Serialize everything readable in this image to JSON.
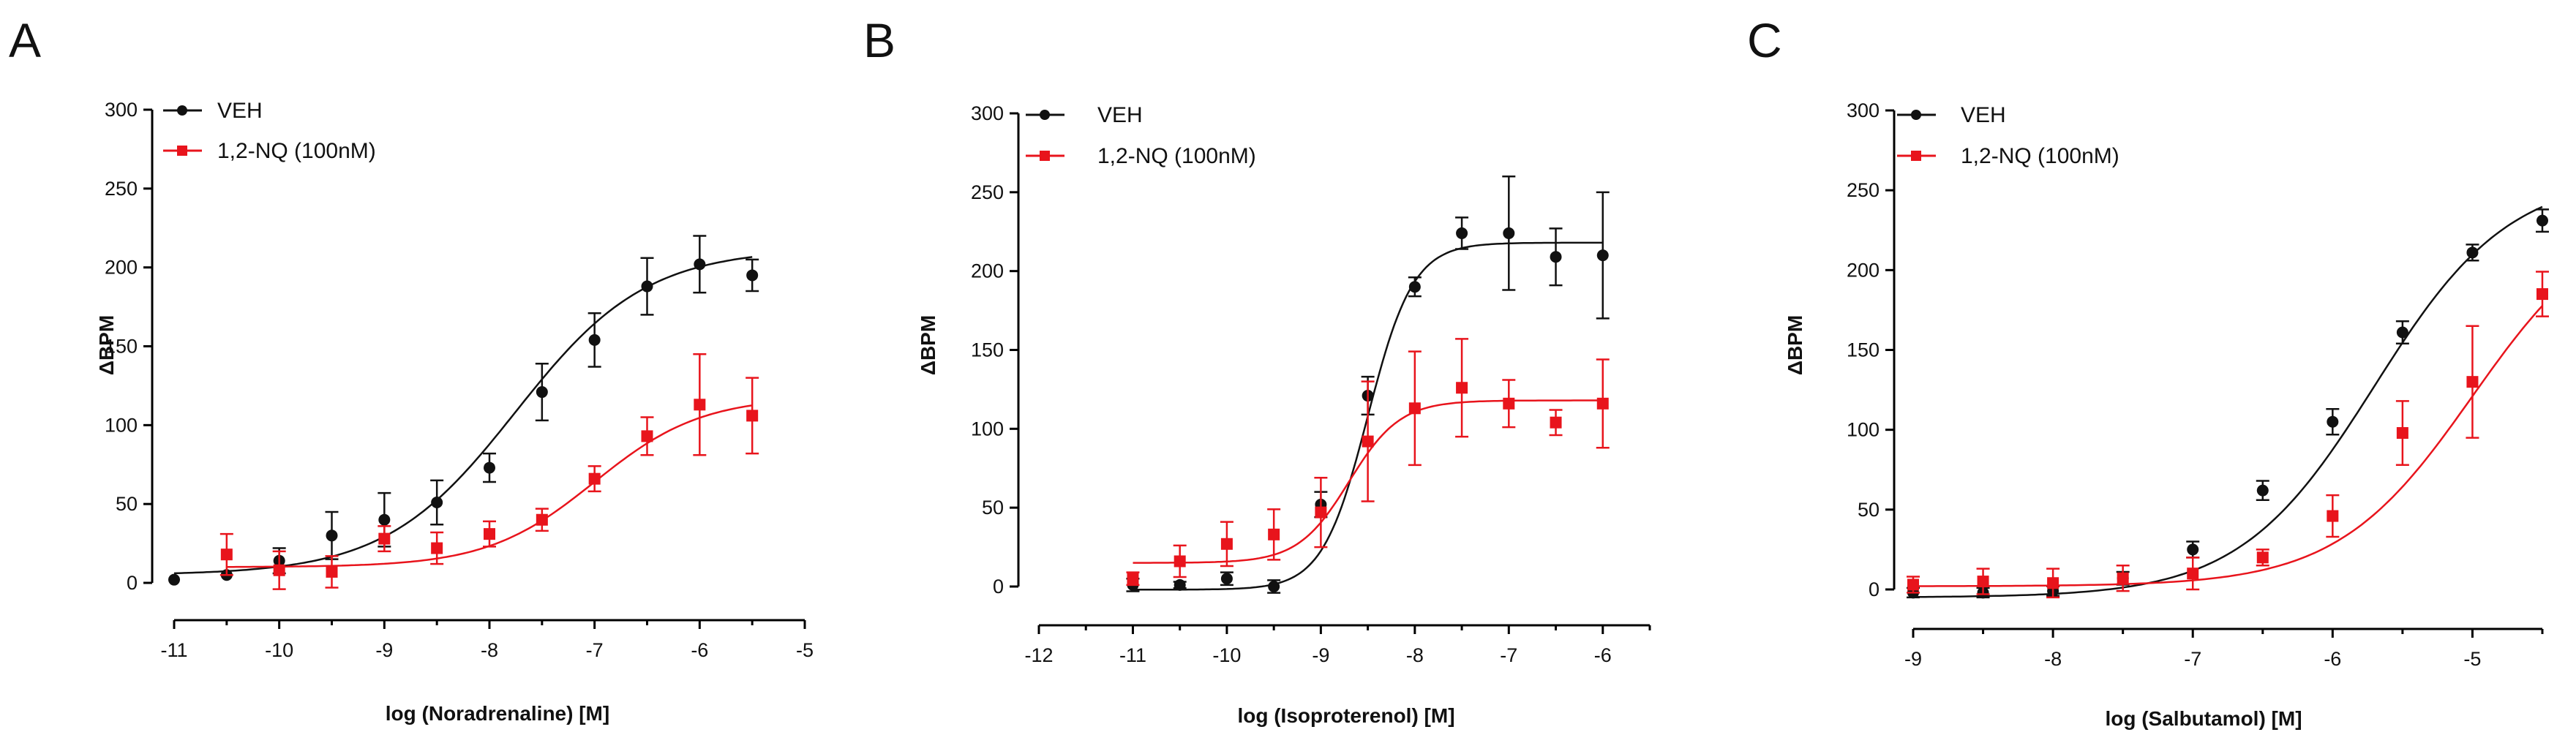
{
  "chart_data": [
    {
      "type": "scatter",
      "panel_label": "A",
      "xlabel": "log (Noradrenaline) [M]",
      "ylabel": "ΔBPM",
      "xlim": [
        -11,
        -5
      ],
      "ylim": [
        0,
        300
      ],
      "xticks": [
        -11,
        -10,
        -9,
        -8,
        -7,
        -6,
        -5
      ],
      "xtick_labels": [
        "-11",
        "-10",
        "-9",
        "-8",
        "-7",
        "-6",
        "-5"
      ],
      "yticks": [
        0,
        50,
        100,
        150,
        200,
        250,
        300
      ],
      "ytick_labels": [
        "0",
        "50",
        "100",
        "150",
        "200",
        "250",
        "300"
      ],
      "legend": "top-left",
      "series": [
        {
          "name": "VEH",
          "color": "#111111",
          "marker": "circle",
          "x": [
            -11,
            -10.5,
            -10,
            -9.5,
            -9,
            -8.5,
            -8,
            -7.5,
            -7,
            -6.5,
            -6,
            -5.5
          ],
          "y": [
            2,
            5,
            14,
            30,
            40,
            51,
            73,
            121,
            154,
            188,
            202,
            195
          ],
          "err": [
            0,
            0,
            8,
            15,
            17,
            14,
            9,
            18,
            17,
            18,
            18,
            10
          ],
          "fit": {
            "bottom": 5,
            "top": 212,
            "logEC50": -7.75,
            "hill": 0.7
          }
        },
        {
          "name": "1,2-NQ (100nM)",
          "color": "#e8141c",
          "marker": "square",
          "x": [
            -10.5,
            -10,
            -9.5,
            -9,
            -8.5,
            -8,
            -7.5,
            -7,
            -6.5,
            -6,
            -5.5
          ],
          "y": [
            18,
            8,
            7,
            28,
            22,
            31,
            40,
            66,
            93,
            113,
            106
          ],
          "err": [
            13,
            12,
            10,
            8,
            10,
            8,
            7,
            8,
            12,
            32,
            24
          ],
          "fit": {
            "bottom": 10,
            "top": 118,
            "logEC50": -7.0,
            "hill": 0.85
          }
        }
      ]
    },
    {
      "type": "scatter",
      "panel_label": "B",
      "xlabel": "log (Isoproterenol) [M]",
      "ylabel": "ΔBPM",
      "xlim": [
        -12,
        -5.5
      ],
      "ylim": [
        0,
        300
      ],
      "xticks": [
        -12,
        -11,
        -10,
        -9,
        -8,
        -7,
        -6
      ],
      "xtick_labels": [
        "-12",
        "-11",
        "-10",
        "-9",
        "-8",
        "-7",
        "-6"
      ],
      "yticks": [
        0,
        50,
        100,
        150,
        200,
        250,
        300
      ],
      "ytick_labels": [
        "0",
        "50",
        "100",
        "150",
        "200",
        "250",
        "300"
      ],
      "legend": "top-left",
      "series": [
        {
          "name": "VEH",
          "color": "#111111",
          "marker": "circle",
          "x": [
            -11,
            -10.5,
            -10,
            -9.5,
            -9,
            -8.5,
            -8,
            -7.5,
            -7,
            -6.5,
            -6
          ],
          "y": [
            1,
            1,
            5,
            0,
            52,
            121,
            190,
            224,
            224,
            209,
            210
          ],
          "err": [
            4,
            2,
            4,
            4,
            8,
            12,
            6,
            10,
            36,
            18,
            40
          ],
          "fit": {
            "bottom": -2,
            "top": 218,
            "logEC50": -8.5,
            "hill": 1.8
          }
        },
        {
          "name": "1,2-NQ (100nM)",
          "color": "#e8141c",
          "marker": "square",
          "x": [
            -11,
            -10.5,
            -10,
            -9.5,
            -9,
            -8.5,
            -8,
            -7.5,
            -7,
            -6.5,
            -6
          ],
          "y": [
            5,
            16,
            27,
            33,
            47,
            92,
            113,
            126,
            116,
            104,
            116
          ],
          "err": [
            4,
            10,
            14,
            16,
            22,
            38,
            36,
            31,
            15,
            8,
            28
          ],
          "fit": {
            "bottom": 15,
            "top": 118,
            "logEC50": -8.7,
            "hill": 1.6
          }
        }
      ]
    },
    {
      "type": "scatter",
      "panel_label": "C",
      "xlabel": "log (Salbutamol) [M]",
      "ylabel": "ΔBPM",
      "xlim": [
        -9,
        -4.5
      ],
      "ylim": [
        0,
        300
      ],
      "xticks": [
        -9,
        -8,
        -7,
        -6,
        -5
      ],
      "xtick_labels": [
        "-9",
        "-8",
        "-7",
        "-6",
        "-5"
      ],
      "yticks": [
        0,
        50,
        100,
        150,
        200,
        250,
        300
      ],
      "ytick_labels": [
        "0",
        "50",
        "100",
        "150",
        "200",
        "250",
        "300"
      ],
      "legend": "top-left",
      "series": [
        {
          "name": "VEH",
          "color": "#111111",
          "marker": "circle",
          "x": [
            -9,
            -8.5,
            -8,
            -7.5,
            -7,
            -6.5,
            -6,
            -5.5,
            -5,
            -4.5
          ],
          "y": [
            -2,
            -2,
            -1,
            7,
            25,
            62,
            105,
            161,
            211,
            231
          ],
          "err": [
            3,
            3,
            3,
            4,
            5,
            6,
            8,
            7,
            5,
            7
          ],
          "fit": {
            "bottom": -5,
            "top": 260,
            "logEC50": -5.7,
            "hill": 0.9
          }
        },
        {
          "name": "1,2-NQ (100nM)",
          "color": "#e8141c",
          "marker": "square",
          "x": [
            -9,
            -8.5,
            -8,
            -7.5,
            -7,
            -6.5,
            -6,
            -5.5,
            -5,
            -4.5
          ],
          "y": [
            3,
            5,
            4,
            7,
            10,
            20,
            46,
            98,
            130,
            185
          ],
          "err": [
            5,
            8,
            9,
            8,
            10,
            5,
            13,
            20,
            35,
            14
          ],
          "fit": {
            "bottom": 2,
            "top": 240,
            "logEC50": -5.0,
            "hill": 0.9
          }
        }
      ]
    }
  ]
}
